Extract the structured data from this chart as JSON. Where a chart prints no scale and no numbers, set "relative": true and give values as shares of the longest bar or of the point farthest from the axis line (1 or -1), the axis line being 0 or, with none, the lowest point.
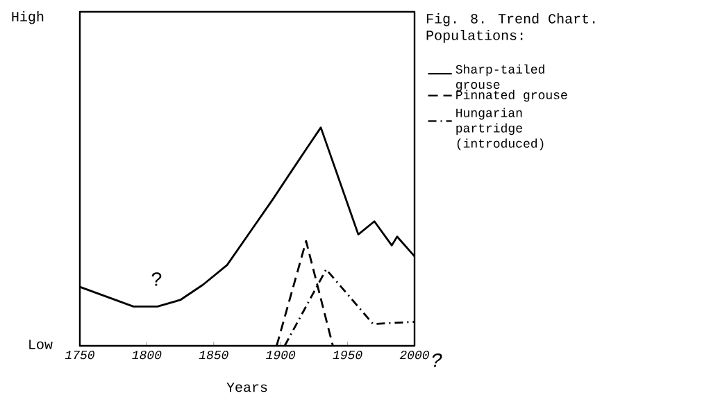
{
  "chart_data": {
    "type": "line",
    "relative": true,
    "title": "Fig. 8. Trend Chart.",
    "subtitle": "Populations:",
    "xlabel": "Years",
    "xlim": [
      1750,
      2000
    ],
    "xticks": [
      1750,
      1800,
      1850,
      1900,
      1950,
      2000
    ],
    "legend": "right",
    "grid": false,
    "annotations": [
      "High",
      "Low",
      "?",
      "?"
    ],
    "series": [
      {
        "name": "Sharp-tailed grouse",
        "color": "#000000",
        "line_style": "solid",
        "x": [
          1750,
          1790,
          1808,
          1825,
          1842,
          1860,
          1877,
          1894,
          1907,
          1919,
          1930,
          1958,
          1970,
          1983,
          1987,
          2000
        ],
        "values": [
          0.27,
          0.18,
          0.18,
          0.21,
          0.28,
          0.37,
          0.52,
          0.67,
          0.79,
          0.9,
          1,
          0.51,
          0.57,
          0.46,
          0.5,
          0.41
        ]
      },
      {
        "name": "Pinnated grouse",
        "color": "#000000",
        "line_style": "dashed",
        "x": [
          1897,
          1919,
          1939
        ],
        "values": [
          0,
          0.48,
          0
        ]
      },
      {
        "name": "Hungarian partridge (introduced)",
        "color": "#000000",
        "line_style": "dotted",
        "x": [
          1903,
          1934,
          1969,
          2000
        ],
        "values": [
          0,
          0.35,
          0.1,
          0.11
        ]
      }
    ]
  }
}
